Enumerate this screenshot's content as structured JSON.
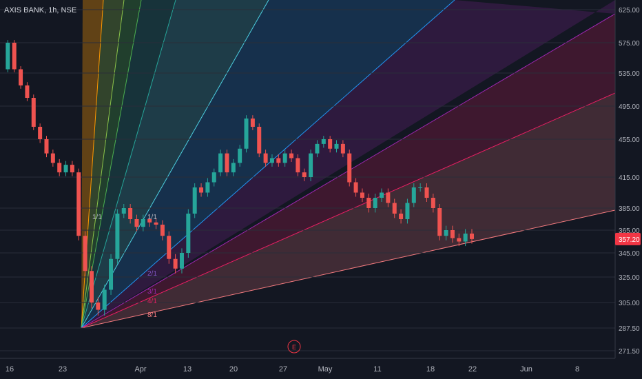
{
  "chart_data": {
    "type": "candlestick",
    "symbol": "AXIS BANK, 1h, NSE",
    "last_price": "357.20",
    "y_ticks": [
      "625.00",
      "575.00",
      "535.00",
      "495.00",
      "455.00",
      "415.00",
      "385.00",
      "365.00",
      "345.00",
      "325.00",
      "305.00",
      "287.50",
      "271.50"
    ],
    "x_ticks": [
      "16",
      "23",
      "Apr",
      "13",
      "20",
      "27",
      "May",
      "11",
      "18",
      "22",
      "Jun",
      "8"
    ],
    "gann_fan": {
      "labels": [
        "1/1",
        "1/1",
        "2/1",
        "3/1",
        "4/1",
        "8/1"
      ],
      "anchor_price": 287.5
    },
    "event_marker": "E",
    "price_path": [
      [
        0,
        540
      ],
      [
        1,
        575
      ],
      [
        2,
        540
      ],
      [
        3,
        520
      ],
      [
        4,
        505
      ],
      [
        5,
        470
      ],
      [
        6,
        455
      ],
      [
        7,
        440
      ],
      [
        8,
        430
      ],
      [
        9,
        420
      ],
      [
        10,
        428
      ],
      [
        11,
        420
      ],
      [
        12,
        360
      ],
      [
        13,
        330
      ],
      [
        14,
        305
      ],
      [
        15,
        300
      ],
      [
        16,
        315
      ],
      [
        17,
        340
      ],
      [
        18,
        380
      ],
      [
        19,
        385
      ],
      [
        20,
        375
      ],
      [
        21,
        368
      ],
      [
        22,
        375
      ],
      [
        23,
        372
      ],
      [
        24,
        370
      ],
      [
        25,
        360
      ],
      [
        26,
        340
      ],
      [
        27,
        332
      ],
      [
        28,
        345
      ],
      [
        29,
        380
      ],
      [
        30,
        405
      ],
      [
        31,
        400
      ],
      [
        32,
        410
      ],
      [
        33,
        420
      ],
      [
        34,
        440
      ],
      [
        35,
        420
      ],
      [
        36,
        430
      ],
      [
        37,
        445
      ],
      [
        38,
        480
      ],
      [
        39,
        470
      ],
      [
        40,
        440
      ],
      [
        41,
        430
      ],
      [
        42,
        435
      ],
      [
        43,
        430
      ],
      [
        44,
        440
      ],
      [
        45,
        435
      ],
      [
        46,
        420
      ],
      [
        47,
        415
      ],
      [
        48,
        440
      ],
      [
        49,
        450
      ],
      [
        50,
        455
      ],
      [
        51,
        445
      ],
      [
        52,
        450
      ],
      [
        53,
        440
      ],
      [
        54,
        410
      ],
      [
        55,
        400
      ],
      [
        56,
        395
      ],
      [
        57,
        385
      ],
      [
        58,
        395
      ],
      [
        59,
        400
      ],
      [
        60,
        390
      ],
      [
        61,
        380
      ],
      [
        62,
        375
      ],
      [
        63,
        390
      ],
      [
        64,
        405
      ],
      [
        65,
        405
      ],
      [
        66,
        395
      ],
      [
        67,
        385
      ],
      [
        68,
        360
      ],
      [
        69,
        365
      ],
      [
        70,
        358
      ],
      [
        71,
        355
      ],
      [
        72,
        362
      ],
      [
        73,
        357.2
      ]
    ]
  }
}
